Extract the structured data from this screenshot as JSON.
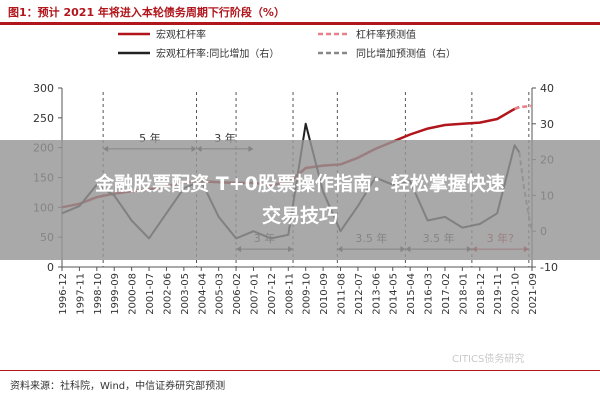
{
  "figure": {
    "title": "图1：预计 2021 年将进入本轮债务周期下行阶段（%）",
    "source": "资料来源：社科院，Wind，中信证券研究部预测",
    "watermark": "CITICS债务研究"
  },
  "overlay": {
    "line1": "金融股票配资 T+0股票操作指南：轻松掌握快速",
    "line2": "交易技巧"
  },
  "chart_data": {
    "type": "line",
    "x_ticks": [
      "1996-12",
      "1997-11",
      "1998-10",
      "1999-09",
      "2000-08",
      "2001-07",
      "2002-06",
      "2003-05",
      "2004-04",
      "2005-03",
      "2006-02",
      "2007-01",
      "2007-12",
      "2008-11",
      "2009-10",
      "2010-09",
      "2011-08",
      "2012-07",
      "2013-06",
      "2014-05",
      "2015-04",
      "2016-03",
      "2017-02",
      "2018-01",
      "2018-12",
      "2019-11",
      "2020-10",
      "2021-09"
    ],
    "y_left": {
      "range": [
        0,
        300
      ],
      "ticks": [
        0,
        50,
        100,
        150,
        200,
        250,
        300
      ]
    },
    "y_right": {
      "range": [
        -10,
        40
      ],
      "ticks": [
        -10,
        0,
        10,
        20,
        30,
        40
      ]
    },
    "legend": [
      {
        "name": "宏观杠杆率",
        "color": "#b0161c",
        "dash": "solid"
      },
      {
        "name": "杠杆率预测值",
        "color": "#e8808a",
        "dash": "dashed"
      },
      {
        "name": "宏观杠杆率:同比增加（右）",
        "color": "#222222",
        "dash": "solid"
      },
      {
        "name": "同比增加预测值（右）",
        "color": "#888888",
        "dash": "dashed"
      }
    ],
    "legend_position": "top",
    "series": [
      {
        "name": "宏观杠杆率",
        "axis": "left",
        "points": [
          [
            "1996-12",
            100
          ],
          [
            "1997-11",
            106
          ],
          [
            "1998-10",
            117
          ],
          [
            "1999-09",
            123
          ],
          [
            "2000-08",
            127
          ],
          [
            "2001-07",
            130
          ],
          [
            "2002-06",
            135
          ],
          [
            "2003-05",
            142
          ],
          [
            "2004-04",
            144
          ],
          [
            "2005-03",
            142
          ],
          [
            "2006-02",
            141
          ],
          [
            "2007-01",
            141
          ],
          [
            "2007-12",
            138
          ],
          [
            "2008-11",
            141
          ],
          [
            "2009-10",
            166
          ],
          [
            "2010-09",
            170
          ],
          [
            "2011-08",
            172
          ],
          [
            "2012-07",
            183
          ],
          [
            "2013-06",
            198
          ],
          [
            "2014-05",
            210
          ],
          [
            "2015-04",
            222
          ],
          [
            "2016-03",
            232
          ],
          [
            "2017-02",
            238
          ],
          [
            "2018-01",
            240
          ],
          [
            "2018-12",
            242
          ],
          [
            "2019-11",
            248
          ],
          [
            "2020-10",
            265
          ],
          [
            "2021-01",
            268
          ]
        ]
      },
      {
        "name": "杠杆率预测值",
        "axis": "left",
        "points": [
          [
            "2020-10",
            265
          ],
          [
            "2021-01",
            268
          ],
          [
            "2021-09",
            270
          ]
        ]
      },
      {
        "name": "宏观杠杆率:同比增加（右）",
        "axis": "right",
        "points": [
          [
            "1996-12",
            5
          ],
          [
            "1997-11",
            7
          ],
          [
            "1998-10",
            13
          ],
          [
            "1999-09",
            10
          ],
          [
            "2000-08",
            3
          ],
          [
            "2001-07",
            -2
          ],
          [
            "2002-06",
            5
          ],
          [
            "2003-05",
            12
          ],
          [
            "2004-04",
            14
          ],
          [
            "2005-03",
            4
          ],
          [
            "2006-02",
            -2
          ],
          [
            "2007-01",
            0
          ],
          [
            "2007-12",
            -2
          ],
          [
            "2008-11",
            -1
          ],
          [
            "2009-10",
            30
          ],
          [
            "2010-09",
            11
          ],
          [
            "2011-08",
            0
          ],
          [
            "2012-07",
            7
          ],
          [
            "2013-06",
            15
          ],
          [
            "2014-05",
            13
          ],
          [
            "2015-04",
            14
          ],
          [
            "2016-03",
            3
          ],
          [
            "2017-02",
            4
          ],
          [
            "2018-01",
            1
          ],
          [
            "2018-12",
            2
          ],
          [
            "2019-11",
            5
          ],
          [
            "2020-10",
            24
          ],
          [
            "2021-01",
            22
          ]
        ]
      },
      {
        "name": "同比增加预测值（右）",
        "axis": "right",
        "points": [
          [
            "2021-01",
            22
          ],
          [
            "2021-04",
            12
          ],
          [
            "2021-07",
            4
          ],
          [
            "2021-09",
            0
          ]
        ]
      }
    ],
    "annotations": [
      {
        "text": "5 年",
        "from": "1999-02",
        "to": "2004-01",
        "axis": "right",
        "y": 23
      },
      {
        "text": "3 年",
        "from": "2004-01",
        "to": "2007-01",
        "axis": "right",
        "y": 23
      },
      {
        "text": "3 年",
        "from": "2006-02",
        "to": "2009-02",
        "axis": "right",
        "y": -5
      },
      {
        "text": "3.5 年",
        "from": "2011-06",
        "to": "2015-01",
        "axis": "right",
        "y": -5
      },
      {
        "text": "3.5 年",
        "from": "2015-01",
        "to": "2018-07",
        "axis": "right",
        "y": -5
      },
      {
        "text": "3 年?",
        "from": "2018-07",
        "to": "2021-07",
        "axis": "right",
        "y": -5,
        "color": "#b0161c"
      }
    ],
    "cycle_lines": [
      "1999-02",
      "2004-01",
      "2006-02",
      "2009-02",
      "2011-06",
      "2015-01",
      "2018-07",
      "2021-07"
    ],
    "grid": false
  }
}
